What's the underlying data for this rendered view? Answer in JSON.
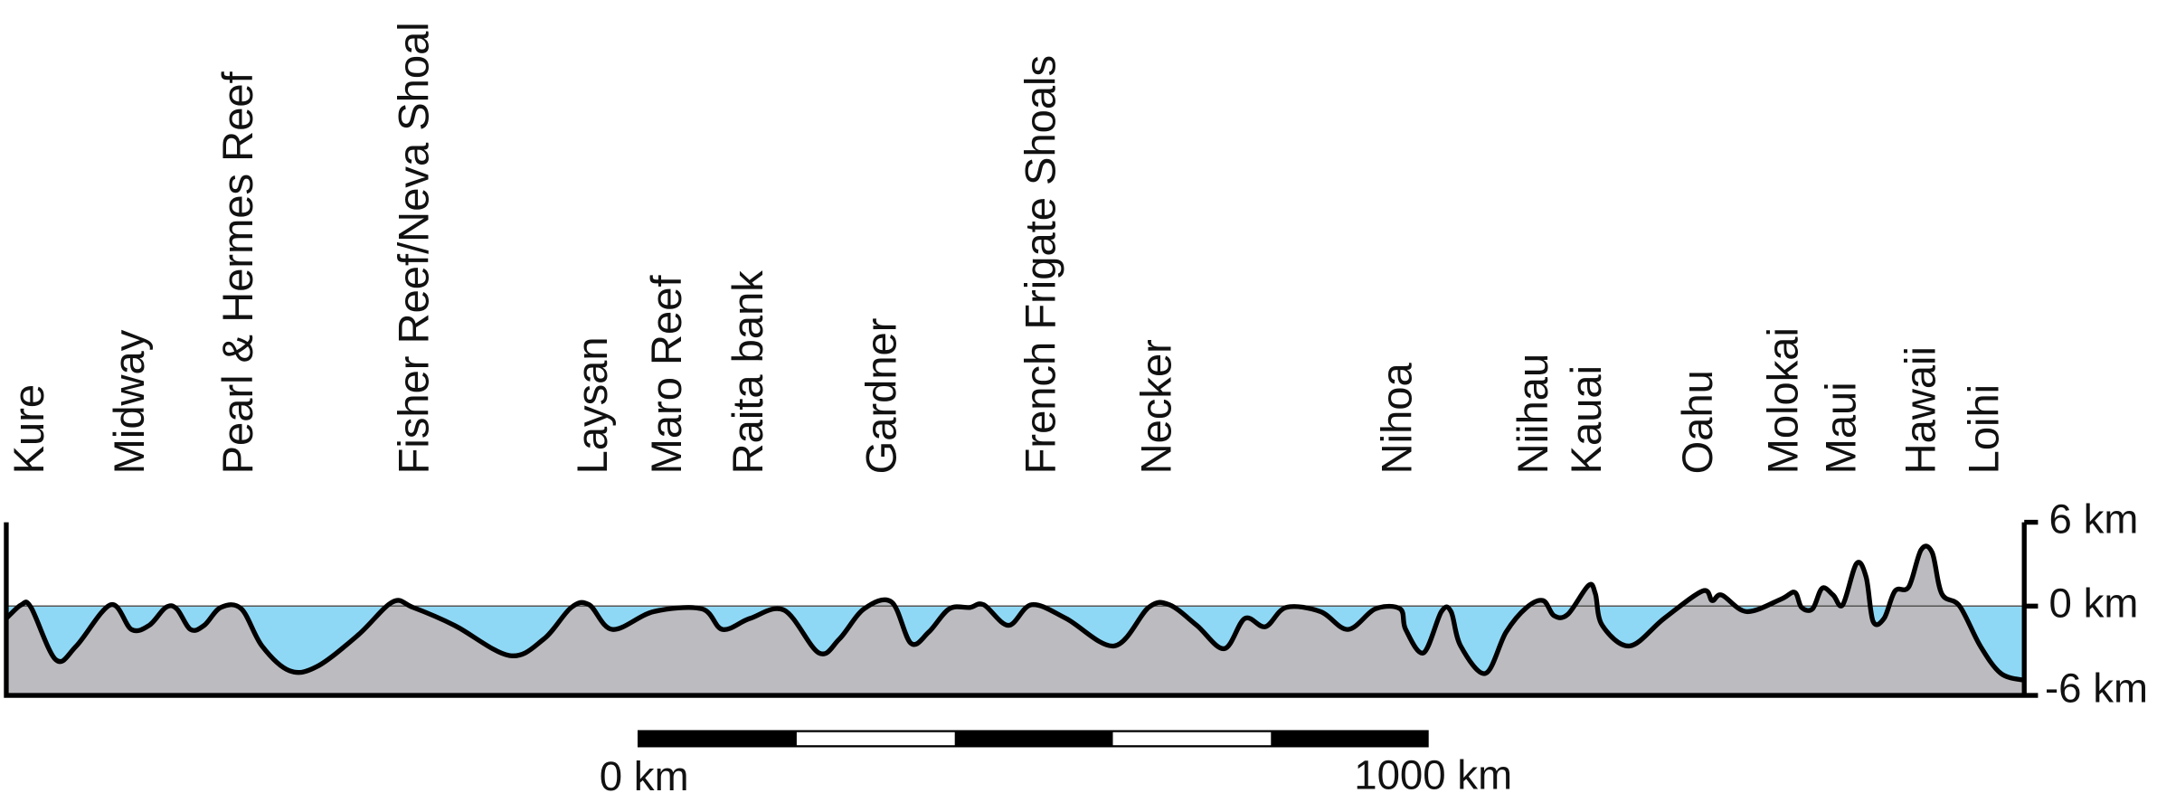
{
  "labels": [
    "Kure",
    "Midway",
    "Pearl & Hermes Reef",
    "Fisher Reef/Neva Shoal",
    "Laysan",
    "Maro Reef",
    "Raita bank",
    "Gardner",
    "French Frigate Shoals",
    "Necker",
    "Nihoa",
    "Niihau",
    "Kauai",
    "Oahu",
    "Molokai",
    "Maui",
    "Hawaii",
    "Loihi"
  ],
  "axis": {
    "ticks": [
      "6 km",
      "0 km",
      "-6 km"
    ]
  },
  "scale_bar": {
    "labels": [
      "0 km",
      "1000 km"
    ]
  }
}
